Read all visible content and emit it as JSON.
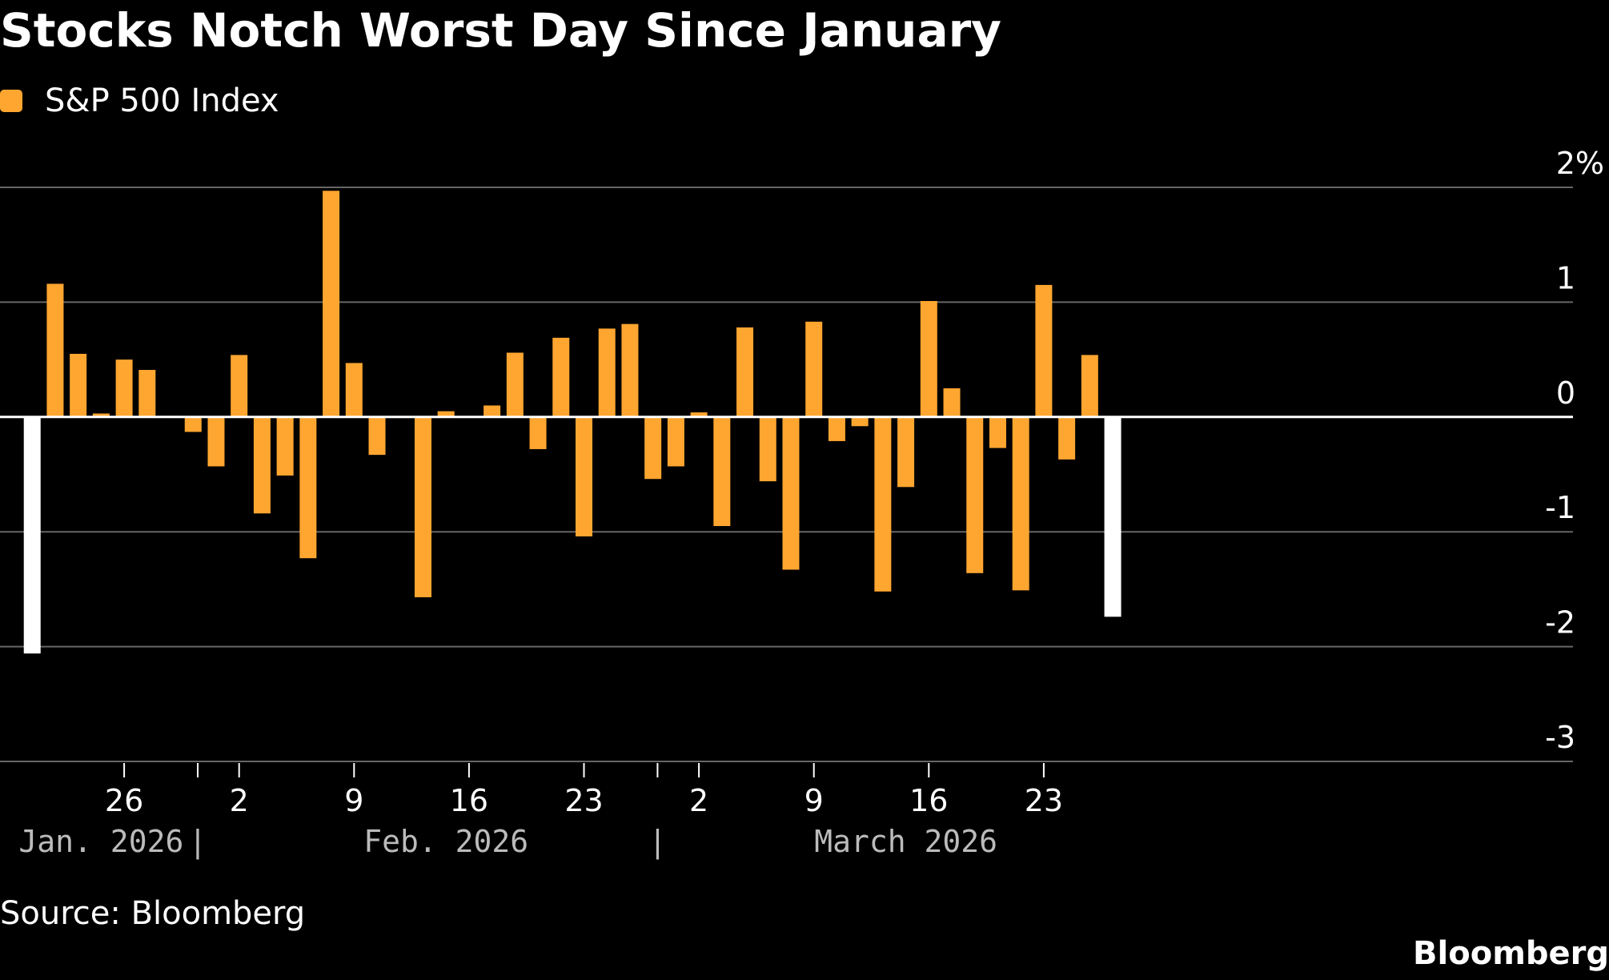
{
  "title": "Stocks Notch Worst Day Since January",
  "legend": {
    "label": "S&P 500 Index",
    "color": "#ffa630"
  },
  "source": "Source: Bloomberg",
  "brand": "Bloomberg",
  "chart_data": {
    "type": "bar",
    "title": "Stocks Notch Worst Day Since January",
    "xlabel": "",
    "ylabel": "",
    "ylim": [
      -3,
      2
    ],
    "yticks": [
      2,
      1,
      0,
      -1,
      -2,
      -3
    ],
    "ytick_labels": [
      "2%",
      "1",
      "0",
      "-1",
      "-2",
      "-3"
    ],
    "grid": true,
    "legend_position": "top-left",
    "colors": {
      "normal": "#ffa630",
      "highlight": "#ffffff"
    },
    "xticks": [
      {
        "label": "26",
        "date": "2026-01-26"
      },
      {
        "label": "2",
        "date": "2026-02-02"
      },
      {
        "label": "9",
        "date": "2026-02-09"
      },
      {
        "label": "16",
        "date": "2026-02-16"
      },
      {
        "label": "23",
        "date": "2026-02-23"
      },
      {
        "label": "2",
        "date": "2026-03-02"
      },
      {
        "label": "9",
        "date": "2026-03-09"
      },
      {
        "label": "16",
        "date": "2026-03-16"
      },
      {
        "label": "23",
        "date": "2026-03-23"
      }
    ],
    "month_labels": [
      {
        "label": "Jan. 2026",
        "date": "2026-01-23"
      },
      {
        "label": "Feb. 2026",
        "date": "2026-02-14"
      },
      {
        "label": "March 2026",
        "date": "2026-03-14"
      }
    ],
    "month_separators": [
      "2026-02-01",
      "2026-03-01"
    ],
    "series": [
      {
        "name": "S&P 500 Index",
        "points": [
          {
            "date": "2026-01-20",
            "value": -2.06,
            "highlight": true
          },
          {
            "date": "2026-01-21",
            "value": 1.16
          },
          {
            "date": "2026-01-22",
            "value": 0.55
          },
          {
            "date": "2026-01-23",
            "value": 0.03
          },
          {
            "date": "2026-01-26",
            "value": 0.5
          },
          {
            "date": "2026-01-27",
            "value": 0.41
          },
          {
            "date": "2026-01-28",
            "value": 0.01
          },
          {
            "date": "2026-01-29",
            "value": -0.13
          },
          {
            "date": "2026-01-30",
            "value": -0.43
          },
          {
            "date": "2026-02-02",
            "value": 0.54
          },
          {
            "date": "2026-02-03",
            "value": -0.84
          },
          {
            "date": "2026-02-04",
            "value": -0.51
          },
          {
            "date": "2026-02-05",
            "value": -1.23
          },
          {
            "date": "2026-02-06",
            "value": 1.97
          },
          {
            "date": "2026-02-09",
            "value": 0.47
          },
          {
            "date": "2026-02-10",
            "value": -0.33
          },
          {
            "date": "2026-02-11",
            "value": 0.0
          },
          {
            "date": "2026-02-12",
            "value": -1.57
          },
          {
            "date": "2026-02-13",
            "value": 0.05
          },
          {
            "date": "2026-02-17",
            "value": 0.1
          },
          {
            "date": "2026-02-18",
            "value": 0.56
          },
          {
            "date": "2026-02-19",
            "value": -0.28
          },
          {
            "date": "2026-02-20",
            "value": 0.69
          },
          {
            "date": "2026-02-23",
            "value": -1.04
          },
          {
            "date": "2026-02-24",
            "value": 0.77
          },
          {
            "date": "2026-02-25",
            "value": 0.81
          },
          {
            "date": "2026-02-26",
            "value": -0.54
          },
          {
            "date": "2026-02-27",
            "value": -0.43
          },
          {
            "date": "2026-03-02",
            "value": 0.04
          },
          {
            "date": "2026-03-03",
            "value": -0.95
          },
          {
            "date": "2026-03-04",
            "value": 0.78
          },
          {
            "date": "2026-03-05",
            "value": -0.56
          },
          {
            "date": "2026-03-06",
            "value": -1.33
          },
          {
            "date": "2026-03-09",
            "value": 0.83
          },
          {
            "date": "2026-03-10",
            "value": -0.21
          },
          {
            "date": "2026-03-11",
            "value": -0.08
          },
          {
            "date": "2026-03-12",
            "value": -1.52
          },
          {
            "date": "2026-03-13",
            "value": -0.61
          },
          {
            "date": "2026-03-16",
            "value": 1.01
          },
          {
            "date": "2026-03-17",
            "value": 0.25
          },
          {
            "date": "2026-03-18",
            "value": -1.36
          },
          {
            "date": "2026-03-19",
            "value": -0.27
          },
          {
            "date": "2026-03-20",
            "value": -1.51
          },
          {
            "date": "2026-03-23",
            "value": 1.15
          },
          {
            "date": "2026-03-24",
            "value": -0.37
          },
          {
            "date": "2026-03-25",
            "value": 0.54
          },
          {
            "date": "2026-03-26",
            "value": -1.74,
            "highlight": true
          }
        ]
      }
    ]
  }
}
